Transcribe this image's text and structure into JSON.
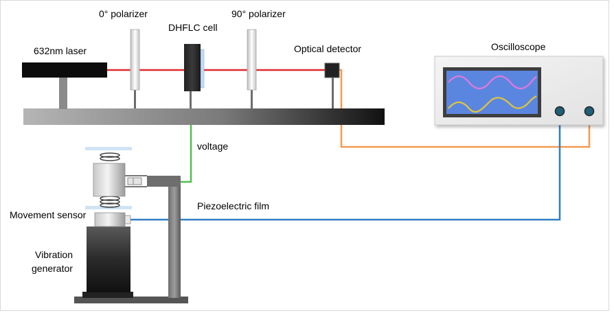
{
  "labels": {
    "laser": "632nm laser",
    "polarizer_0": "0° polarizer",
    "dhflc_cell": "DHFLC cell",
    "polarizer_90": "90° polarizer",
    "optical_detector": "Optical detector",
    "oscilloscope": "Oscilloscope",
    "voltage": "voltage",
    "piezo_film": "Piezoelectric film",
    "movement_sensor": "Movement sensor",
    "vibration_generator_line1": "Vibration",
    "vibration_generator_line2": "generator"
  },
  "colors": {
    "laser_beam": "#e0292b",
    "voltage_wire": "#4cc24a",
    "detector_wire": "#f39a4f",
    "sensor_wire": "#2f7ec2",
    "screen": "#5b86e0",
    "trace_upper": "#e07ad8",
    "trace_lower": "#e0c63a",
    "knob": "#1f5f78"
  }
}
